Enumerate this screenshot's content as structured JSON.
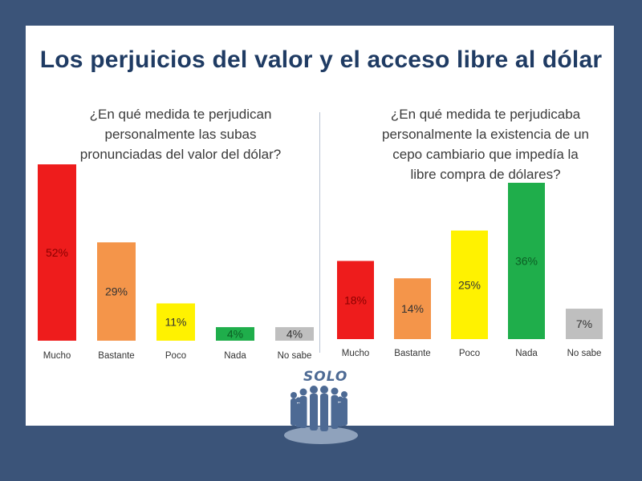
{
  "title": "Los perjuicios del valor y el acceso libre al dólar",
  "logo_text": "SOLO",
  "colors": {
    "background": "#3b5479",
    "Mucho": "#ee1c1c",
    "Bastante": "#f4954a",
    "Poco": "#fff200",
    "Nada": "#1fae4b",
    "No sabe": "#bfbfbf"
  },
  "chart_data": [
    {
      "type": "bar",
      "title": "¿En qué medida te perjudican personalmente las subas pronunciadas del valor del dólar?",
      "title_lines": [
        "¿En qué medida te perjudican",
        "personalmente las subas",
        "pronunciadas del valor del dólar?"
      ],
      "categories": [
        "Mucho",
        "Bastante",
        "Poco",
        "Nada",
        "No sabe"
      ],
      "values": [
        52,
        29,
        11,
        4,
        4
      ],
      "labels": [
        "52%",
        "29%",
        "11%",
        "4%",
        "4%"
      ],
      "ylim": [
        0,
        52
      ],
      "grid": false
    },
    {
      "type": "bar",
      "title": "¿En qué medida te perjudicaba personalmente la existencia de un cepo cambiario que impedía la libre compra de dólares?",
      "title_lines": [
        "¿En qué medida te perjudicaba",
        "personalmente la existencia de un",
        "cepo cambiario que impedía la",
        "libre compra de dólares?"
      ],
      "categories": [
        "Mucho",
        "Bastante",
        "Poco",
        "Nada",
        "No sabe"
      ],
      "values": [
        18,
        14,
        25,
        36,
        7
      ],
      "labels": [
        "18%",
        "14%",
        "25%",
        "36%",
        "7%"
      ],
      "ylim": [
        0,
        36
      ],
      "grid": false
    }
  ]
}
